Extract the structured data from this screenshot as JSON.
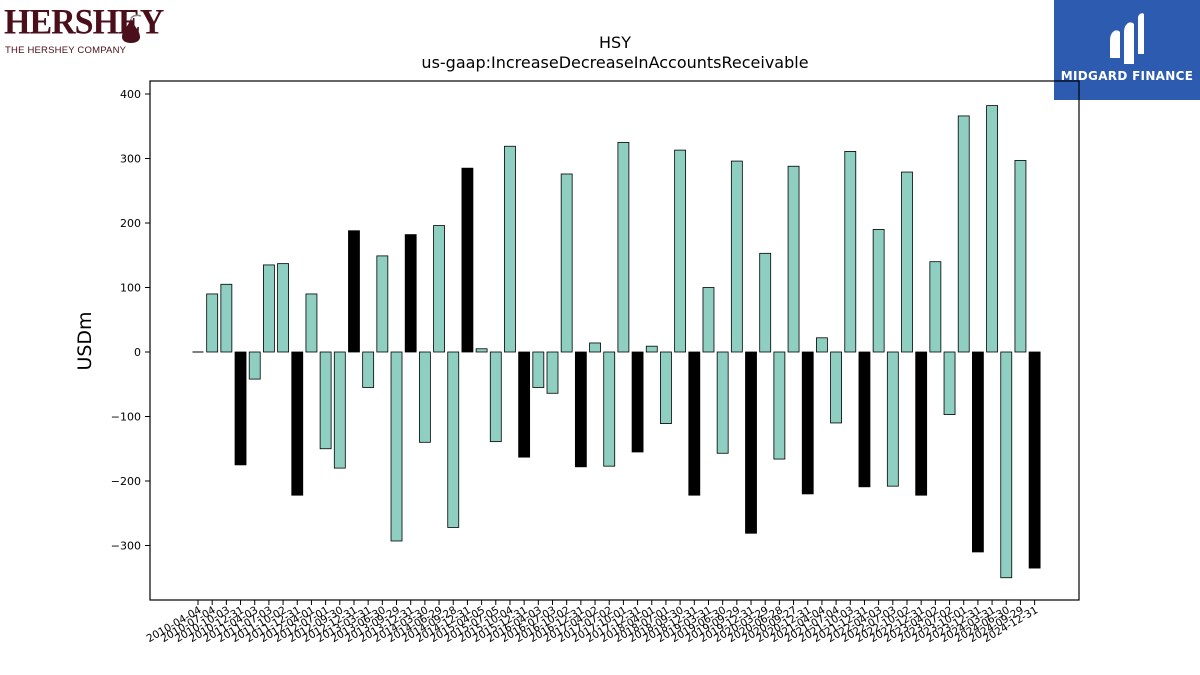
{
  "header": {
    "left_logo": {
      "wordmark": "HERSHEY",
      "subtitle": "THE HERSHEY COMPANY",
      "color": "#4a0f1a"
    },
    "right_logo": {
      "text": "MIDGARD FINANCE",
      "background": "#2d5bb0"
    }
  },
  "chart_data": {
    "type": "bar",
    "title": "HSY",
    "subtitle": "us-gaap:IncreaseDecreaseInAccountsReceivable",
    "ylabel": "USDm",
    "xlabel": "",
    "ylim": [
      -390,
      420
    ],
    "yticks": [
      -300,
      -200,
      -100,
      0,
      100,
      200,
      300,
      400
    ],
    "colors": {
      "default": "#8ecfc2",
      "highlight": "#000000",
      "edge": "#000000"
    },
    "categories": [
      "2010-04-04",
      "2010-07-04",
      "2010-10-03",
      "2010-12-31",
      "2011-04-03",
      "2011-07-03",
      "2011-10-02",
      "2011-12-31",
      "2012-04-01",
      "2012-07-01",
      "2012-09-30",
      "2012-12-31",
      "2013-03-31",
      "2013-06-30",
      "2013-09-29",
      "2013-12-31",
      "2014-03-30",
      "2014-06-29",
      "2014-09-28",
      "2014-12-31",
      "2015-04-05",
      "2015-07-05",
      "2015-10-04",
      "2015-12-31",
      "2016-04-03",
      "2016-07-03",
      "2016-10-02",
      "2016-12-31",
      "2017-04-02",
      "2017-07-02",
      "2017-10-01",
      "2017-12-31",
      "2018-04-01",
      "2018-07-01",
      "2018-09-30",
      "2018-12-31",
      "2019-03-31",
      "2019-06-30",
      "2019-09-29",
      "2019-12-31",
      "2020-03-29",
      "2020-06-28",
      "2020-09-27",
      "2020-12-31",
      "2021-04-04",
      "2021-07-04",
      "2021-10-03",
      "2021-12-31",
      "2022-04-03",
      "2022-07-03",
      "2022-10-02",
      "2022-12-31",
      "2023-04-02",
      "2023-07-02",
      "2023-10-01",
      "2023-12-31",
      "2024-03-31",
      "2024-06-30",
      "2024-09-29",
      "2024-12-31"
    ],
    "values": [
      0,
      90,
      105,
      -175,
      -42,
      135,
      137,
      -222,
      90,
      -150,
      -180,
      188,
      -55,
      149,
      -293,
      182,
      -140,
      196,
      -272,
      285,
      5,
      -139,
      319,
      -163,
      -55,
      -64,
      276,
      -178,
      14,
      -177,
      325,
      -155,
      9,
      -111,
      313,
      -222,
      100,
      -157,
      296,
      -281,
      153,
      -166,
      288,
      -220,
      22,
      -110,
      311,
      -209,
      190,
      -208,
      279,
      -222,
      140,
      -97,
      366,
      -310,
      382,
      -350,
      297,
      -335
    ],
    "highlight_every": 4,
    "highlight_offset": 3
  }
}
